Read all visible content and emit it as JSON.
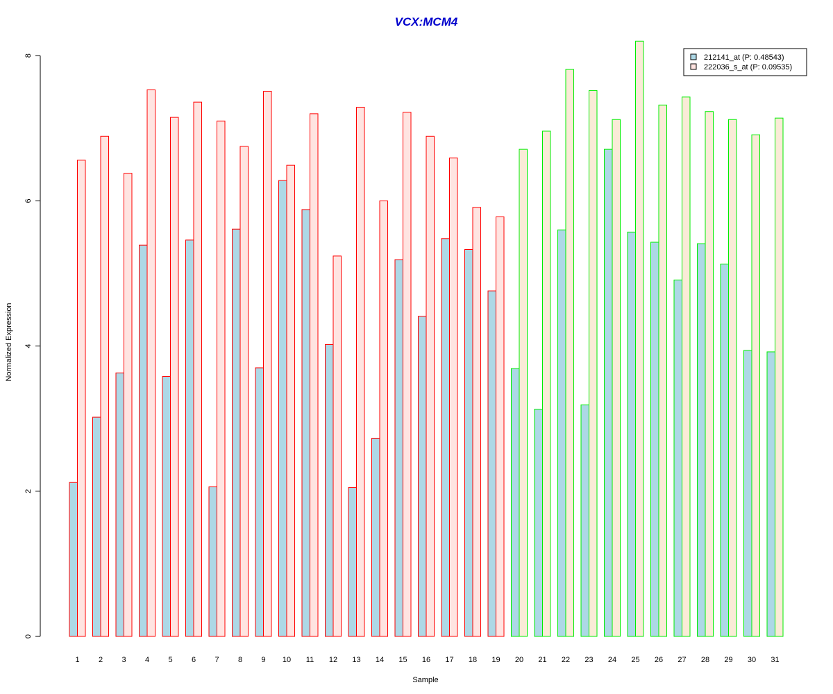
{
  "chart_data": {
    "type": "bar",
    "title": "VCX:MCM4",
    "xlabel": "Sample",
    "ylabel": "Normalized Expression",
    "ylim": [
      0,
      8.2
    ],
    "yticks": [
      0,
      2,
      4,
      6,
      8
    ],
    "grid": false,
    "legend_position": "top-right",
    "categories": [
      "1",
      "2",
      "3",
      "4",
      "5",
      "6",
      "7",
      "8",
      "9",
      "10",
      "11",
      "12",
      "13",
      "14",
      "15",
      "16",
      "17",
      "18",
      "19",
      "20",
      "21",
      "22",
      "23",
      "24",
      "25",
      "26",
      "27",
      "28",
      "29",
      "30",
      "31"
    ],
    "group_sizes": [
      19,
      12
    ],
    "series": [
      {
        "name": "212141_at (P: 0.48543)",
        "values": [
          2.12,
          3.02,
          3.63,
          5.39,
          3.58,
          5.46,
          2.06,
          5.61,
          3.7,
          6.28,
          5.88,
          4.02,
          2.05,
          2.73,
          5.19,
          4.41,
          5.48,
          5.33,
          4.76,
          3.69,
          3.13,
          5.6,
          3.19,
          6.71,
          5.57,
          5.43,
          4.91,
          5.41,
          5.13,
          3.94,
          3.92
        ]
      },
      {
        "name": "222036_s_at (P: 0.09535)",
        "values": [
          6.56,
          6.89,
          6.38,
          7.53,
          7.15,
          7.36,
          7.1,
          6.75,
          7.51,
          6.49,
          7.2,
          5.24,
          7.29,
          6.0,
          7.22,
          6.89,
          6.59,
          5.91,
          5.78,
          6.71,
          6.96,
          7.81,
          7.52,
          7.12,
          8.2,
          7.32,
          7.43,
          7.23,
          7.12,
          6.91,
          7.14
        ]
      }
    ]
  },
  "colors": {
    "title": "#0000CC",
    "series1_fill": "#ADD8E6",
    "series2_fill_group1": "#FFE4E1",
    "series2_fill_group2": "#FAEBD7",
    "group1_border": "#FF0000",
    "group2_border": "#00EE00",
    "legend_series1": "#ADD8E6",
    "legend_series2": "#FFE4E1"
  }
}
